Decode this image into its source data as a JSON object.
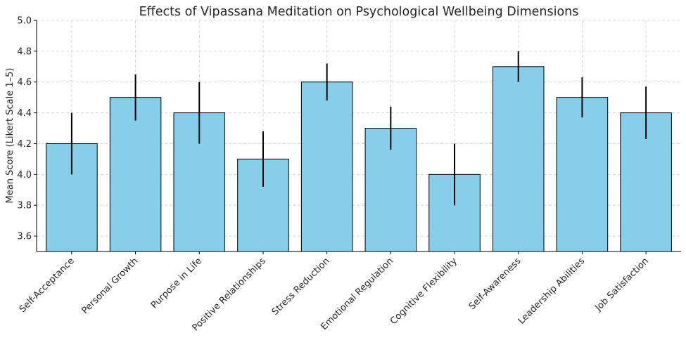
{
  "chart_data": {
    "type": "bar",
    "title": "Effects of Vipassana Meditation on Psychological Wellbeing Dimensions",
    "xlabel": "",
    "ylabel": "Mean Score (Likert Scale 1–5)",
    "ylim": [
      3.5,
      5.0
    ],
    "yticks": [
      "3.6",
      "3.8",
      "4.0",
      "4.2",
      "4.4",
      "4.6",
      "4.8",
      "5.0"
    ],
    "categories": [
      "Self-Acceptance",
      "Personal Growth",
      "Purpose in Life",
      "Positive Relationships",
      "Stress Reduction",
      "Emotional Regulation",
      "Cognitive Flexibility",
      "Self-Awareness",
      "Leadership Abilities",
      "Job Satisfaction"
    ],
    "values": [
      4.2,
      4.5,
      4.4,
      4.1,
      4.6,
      4.3,
      4.0,
      4.7,
      4.5,
      4.4
    ],
    "errors": [
      0.2,
      0.15,
      0.2,
      0.18,
      0.12,
      0.14,
      0.2,
      0.1,
      0.13,
      0.17
    ],
    "bar_color": "#87CEEB",
    "edge_color": "#000000",
    "error_color": "#000000",
    "grid": true
  }
}
